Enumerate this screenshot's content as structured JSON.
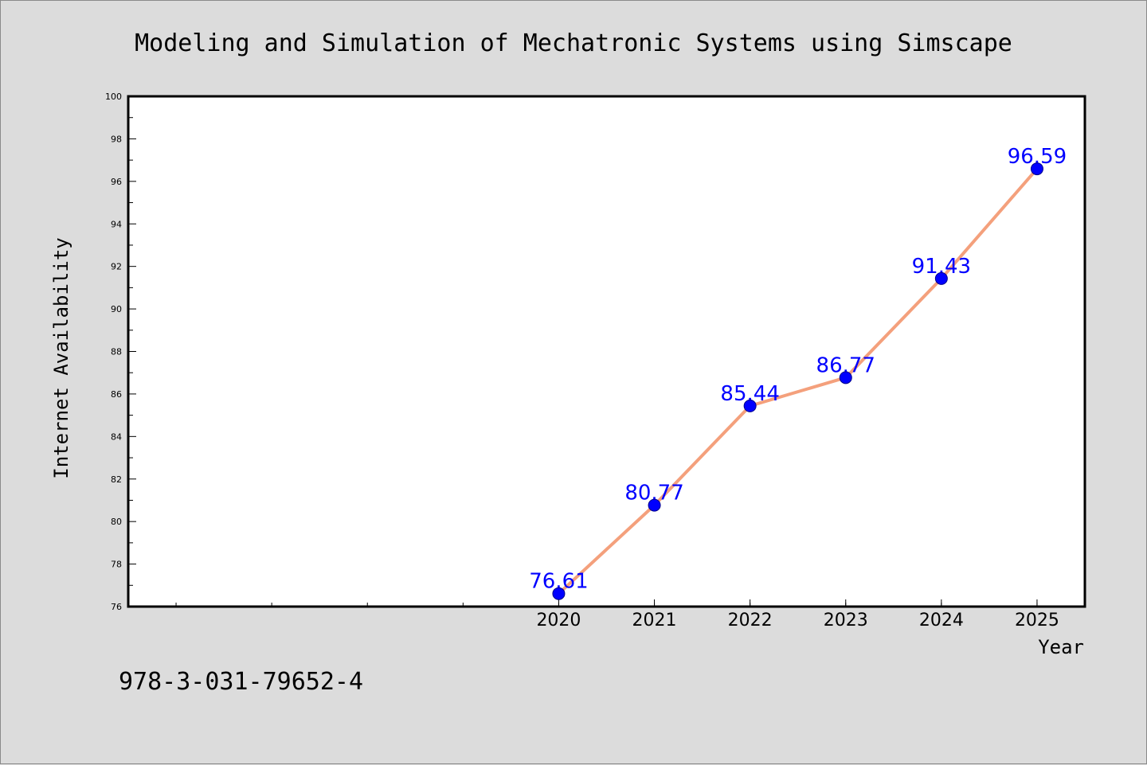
{
  "chart_data": {
    "type": "line",
    "title": "Modeling and Simulation of Mechatronic Systems using Simscape",
    "xlabel": "Year",
    "ylabel": "Internet Availability",
    "x": [
      2020,
      2021,
      2022,
      2023,
      2024,
      2025
    ],
    "x_tick_labels": [
      "2020",
      "2021",
      "2022",
      "2023",
      "2024",
      "2025"
    ],
    "values": [
      76.61,
      80.77,
      85.44,
      86.77,
      91.43,
      96.59
    ],
    "data_labels": [
      "76.61",
      "80.77",
      "85.44",
      "86.77",
      "91.43",
      "96.59"
    ],
    "xlim": [
      2015.5,
      2025.5
    ],
    "ylim": [
      76,
      100
    ],
    "y_ticks": [
      76,
      78,
      80,
      82,
      84,
      86,
      88,
      90,
      92,
      94,
      96,
      98,
      100
    ],
    "y_tick_labels": [
      "76",
      "78",
      "80",
      "82",
      "84",
      "86",
      "88",
      "90",
      "92",
      "94",
      "96",
      "98",
      "100"
    ],
    "grid": false,
    "colors": {
      "line": "#f4a07c",
      "marker": "#0000ff",
      "label": "#0000ff"
    }
  },
  "footer": {
    "isbn": "978-3-031-79652-4"
  }
}
